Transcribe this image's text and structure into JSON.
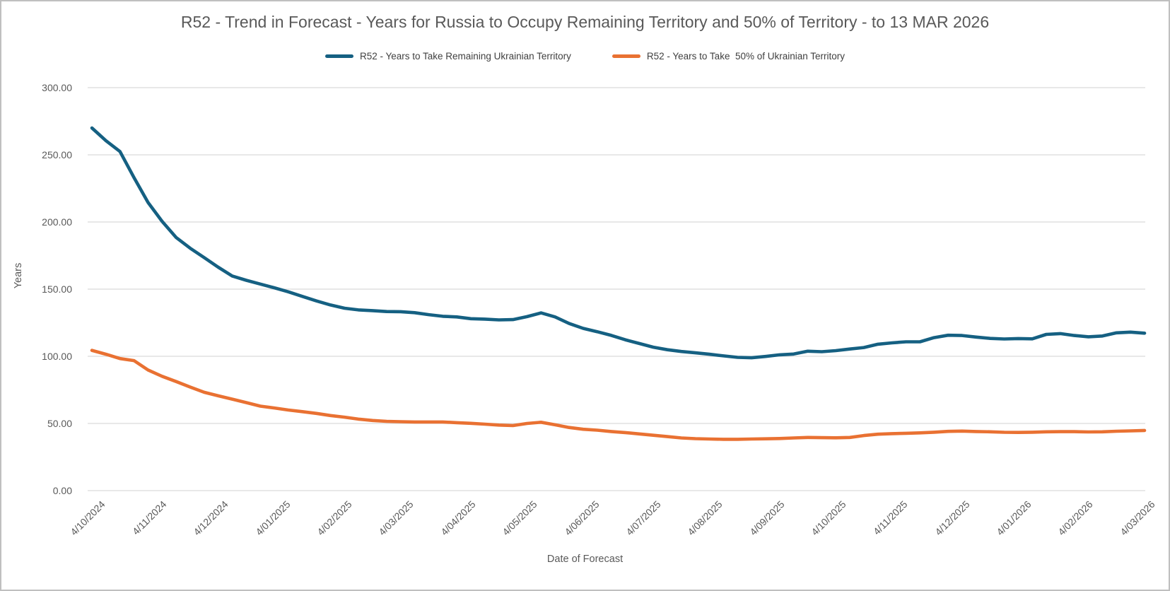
{
  "chart_data": {
    "type": "line",
    "title": "R52 - Trend in Forecast - Years for Russia to Occupy Remaining Territory and 50% of Territory - to 13 MAR 2026",
    "xlabel": "Date of Forecast",
    "ylabel": "Years",
    "ylim": [
      0,
      300
    ],
    "grid": true,
    "legend_position": "top",
    "y_ticks": [
      {
        "value": 300,
        "label": "300.00"
      },
      {
        "value": 250,
        "label": "250.00"
      },
      {
        "value": 200,
        "label": "200.00"
      },
      {
        "value": 150,
        "label": "150.00"
      },
      {
        "value": 100,
        "label": "100.00"
      },
      {
        "value": 50,
        "label": "50.00"
      },
      {
        "value": 0,
        "label": "0.00"
      }
    ],
    "x_ticks": [
      "4/10/2024",
      "4/11/2024",
      "4/12/2024",
      "4/01/2025",
      "4/02/2025",
      "4/03/2025",
      "4/04/2025",
      "4/05/2025",
      "4/06/2025",
      "4/07/2025",
      "4/08/2025",
      "4/09/2025",
      "4/10/2025",
      "4/11/2025",
      "4/12/2025",
      "4/01/2026",
      "4/02/2026",
      "4/03/2026"
    ],
    "series": [
      {
        "name": "R52 - Years to Take Remaining Ukrainian Territory",
        "color": "#156082",
        "values": [
          270,
          260.5,
          252.5,
          233,
          214.5,
          200.5,
          188.5,
          180.5,
          173.5,
          166.3,
          159.8,
          156.6,
          153.8,
          151,
          148,
          144.6,
          141.2,
          138.2,
          135.8,
          134.5,
          134,
          133.3,
          133.2,
          132.5,
          131,
          129.8,
          129.3,
          128,
          127.7,
          127.1,
          127.3,
          129.5,
          132.3,
          129.3,
          124.4,
          120.8,
          118.3,
          115.6,
          112.3,
          109.5,
          106.8,
          104.9,
          103.6,
          102.6,
          101.5,
          100.3,
          99.2,
          98.9,
          99.9,
          101.1,
          101.7,
          103.8,
          103.4,
          104.2,
          105.4,
          106.5,
          109,
          110,
          110.8,
          110.8,
          113.9,
          115.7,
          115.5,
          114.3,
          113.3,
          112.9,
          113.2,
          113,
          116.3,
          116.9,
          115.5,
          114.5,
          115.1,
          117.5,
          118,
          117.2
        ]
      },
      {
        "name": "R52 - Years to Take  50% of Ukrainian Territory",
        "color": "#E97132",
        "values": [
          104.4,
          101.5,
          98.3,
          96.8,
          89.8,
          85.1,
          81.2,
          77.1,
          73.2,
          70.6,
          68.1,
          65.5,
          62.9,
          61.5,
          60,
          58.8,
          57.5,
          55.9,
          54.7,
          53.2,
          52.2,
          51.6,
          51.3,
          51.1,
          51.1,
          51.1,
          50.6,
          50.1,
          49.5,
          48.8,
          48.4,
          50,
          50.9,
          49,
          47,
          45.7,
          45,
          44,
          43.2,
          42.2,
          41.2,
          40.2,
          39.2,
          38.7,
          38.4,
          38.2,
          38.2,
          38.4,
          38.6,
          38.8,
          39.2,
          39.6,
          39.4,
          39.3,
          39.6,
          41,
          42,
          42.4,
          42.7,
          43,
          43.5,
          44.1,
          44.3,
          44,
          43.8,
          43.4,
          43.3,
          43.5,
          43.8,
          43.9,
          43.9,
          43.7,
          43.8,
          44.2,
          44.5,
          44.8
        ]
      }
    ],
    "colors": {
      "gridline": "#D9D9D9",
      "axis_line": "#D9D9D9",
      "text": "#595959",
      "border": "#BFBFBF"
    }
  }
}
